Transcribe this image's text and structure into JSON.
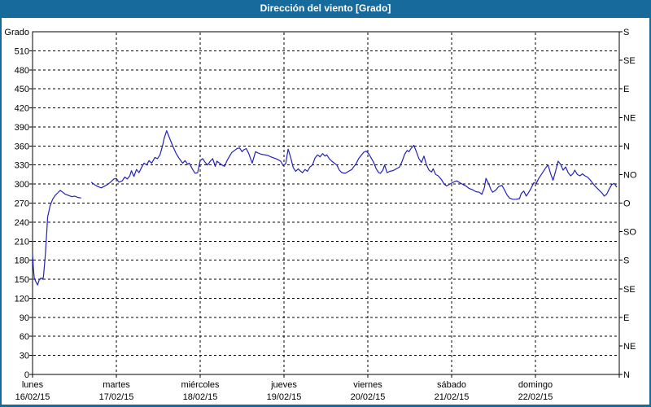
{
  "window": {
    "title": "Dirección del viento [Grado]"
  },
  "colors": {
    "frame": "#176a9c",
    "titlebar_bg": "#176a9c",
    "titlebar_text": "#ffffff",
    "plot_bg": "#ffffff",
    "grid": "#000000",
    "line": "#2222bb",
    "text": "#000000"
  },
  "chart_data": {
    "type": "line",
    "title": "Dirección del viento [Grado]",
    "ylabel": "Grado",
    "ylim": [
      0,
      540
    ],
    "grid": "dashed",
    "legend_position": "none",
    "y_left": {
      "label": "Grado",
      "tick_step": 30,
      "ticks": [
        0,
        30,
        60,
        90,
        120,
        150,
        180,
        210,
        240,
        270,
        300,
        330,
        360,
        390,
        420,
        450,
        480,
        510
      ]
    },
    "y_right": {
      "tick_step": 45,
      "labels_bottom_to_top": [
        "N",
        "NE",
        "E",
        "SE",
        "S",
        "SO",
        "O",
        "NO",
        "N",
        "NE",
        "E",
        "SE",
        "S"
      ]
    },
    "x_days": [
      {
        "name": "lunes",
        "date": "16/02/15"
      },
      {
        "name": "martes",
        "date": "17/02/15"
      },
      {
        "name": "miércoles",
        "date": "18/02/15"
      },
      {
        "name": "jueves",
        "date": "19/02/15"
      },
      {
        "name": "viernes",
        "date": "20/02/15"
      },
      {
        "name": "sábado",
        "date": "21/02/15"
      },
      {
        "name": "domingo",
        "date": "22/02/15"
      }
    ],
    "series": [
      {
        "name": "Dirección del viento",
        "unit": "Grado",
        "x_unit": "days_since_start",
        "segments": [
          [
            [
              0.0,
              190
            ],
            [
              0.01,
              168
            ],
            [
              0.02,
              152
            ],
            [
              0.04,
              146
            ],
            [
              0.06,
              141
            ],
            [
              0.08,
              149
            ],
            [
              0.1,
              152
            ],
            [
              0.12,
              150
            ],
            [
              0.13,
              154
            ],
            [
              0.15,
              185
            ],
            [
              0.17,
              225
            ],
            [
              0.18,
              248
            ],
            [
              0.21,
              266
            ],
            [
              0.24,
              276
            ],
            [
              0.27,
              282
            ],
            [
              0.3,
              286
            ],
            [
              0.33,
              290
            ],
            [
              0.36,
              287
            ],
            [
              0.39,
              284
            ],
            [
              0.43,
              282
            ],
            [
              0.47,
              280
            ],
            [
              0.5,
              281
            ],
            [
              0.54,
              279
            ],
            [
              0.58,
              278
            ]
          ],
          [
            [
              0.7,
              303
            ],
            [
              0.74,
              299
            ],
            [
              0.78,
              296
            ],
            [
              0.82,
              294
            ],
            [
              0.85,
              296
            ],
            [
              0.89,
              299
            ],
            [
              0.93,
              303
            ],
            [
              0.97,
              308
            ],
            [
              1.0,
              309
            ],
            [
              1.03,
              303
            ],
            [
              1.07,
              305
            ],
            [
              1.1,
              311
            ],
            [
              1.13,
              308
            ],
            [
              1.16,
              313
            ],
            [
              1.18,
              321
            ],
            [
              1.21,
              312
            ],
            [
              1.24,
              323
            ],
            [
              1.27,
              318
            ],
            [
              1.3,
              326
            ],
            [
              1.33,
              333
            ],
            [
              1.36,
              330
            ],
            [
              1.39,
              337
            ],
            [
              1.42,
              333
            ],
            [
              1.46,
              342
            ],
            [
              1.49,
              340
            ],
            [
              1.52,
              346
            ],
            [
              1.55,
              360
            ],
            [
              1.57,
              372
            ],
            [
              1.6,
              384
            ],
            [
              1.63,
              374
            ],
            [
              1.67,
              361
            ],
            [
              1.71,
              349
            ],
            [
              1.75,
              340
            ],
            [
              1.79,
              333
            ],
            [
              1.82,
              337
            ],
            [
              1.85,
              331
            ],
            [
              1.87,
              333
            ],
            [
              1.91,
              323
            ],
            [
              1.94,
              317
            ],
            [
              1.97,
              318
            ],
            [
              2.0,
              337
            ],
            [
              2.03,
              340
            ],
            [
              2.06,
              334
            ],
            [
              2.09,
              330
            ],
            [
              2.12,
              336
            ],
            [
              2.15,
              340
            ],
            [
              2.18,
              328
            ],
            [
              2.2,
              336
            ],
            [
              2.23,
              333
            ],
            [
              2.26,
              330
            ],
            [
              2.29,
              328
            ],
            [
              2.32,
              337
            ],
            [
              2.35,
              344
            ],
            [
              2.38,
              350
            ],
            [
              2.41,
              353
            ],
            [
              2.44,
              356
            ],
            [
              2.47,
              357
            ],
            [
              2.5,
              351
            ],
            [
              2.52,
              354
            ],
            [
              2.55,
              356
            ],
            [
              2.58,
              348
            ],
            [
              2.62,
              333
            ],
            [
              2.66,
              351
            ],
            [
              2.69,
              349
            ],
            [
              2.73,
              347
            ],
            [
              2.77,
              346
            ],
            [
              2.81,
              345
            ],
            [
              2.84,
              343
            ],
            [
              2.88,
              341
            ],
            [
              2.92,
              339
            ],
            [
              2.96,
              336
            ],
            [
              2.99,
              329
            ],
            [
              3.02,
              332
            ],
            [
              3.05,
              355
            ],
            [
              3.08,
              342
            ],
            [
              3.11,
              326
            ],
            [
              3.14,
              320
            ],
            [
              3.17,
              324
            ],
            [
              3.19,
              321
            ],
            [
              3.22,
              318
            ],
            [
              3.25,
              323
            ],
            [
              3.28,
              320
            ],
            [
              3.31,
              327
            ],
            [
              3.34,
              330
            ],
            [
              3.37,
              341
            ],
            [
              3.4,
              346
            ],
            [
              3.43,
              343
            ],
            [
              3.46,
              348
            ],
            [
              3.49,
              344
            ],
            [
              3.51,
              346
            ],
            [
              3.54,
              340
            ],
            [
              3.57,
              336
            ],
            [
              3.6,
              333
            ],
            [
              3.63,
              330
            ],
            [
              3.66,
              322
            ],
            [
              3.69,
              318
            ],
            [
              3.73,
              317
            ],
            [
              3.77,
              320
            ],
            [
              3.81,
              323
            ],
            [
              3.83,
              327
            ],
            [
              3.86,
              332
            ],
            [
              3.89,
              340
            ],
            [
              3.92,
              345
            ],
            [
              3.95,
              350
            ],
            [
              3.98,
              352
            ],
            [
              4.01,
              348
            ],
            [
              4.04,
              341
            ],
            [
              4.07,
              334
            ],
            [
              4.1,
              324
            ],
            [
              4.13,
              318
            ],
            [
              4.15,
              317
            ],
            [
              4.18,
              322
            ],
            [
              4.2,
              330
            ],
            [
              4.23,
              318
            ],
            [
              4.26,
              320
            ],
            [
              4.3,
              321
            ],
            [
              4.34,
              324
            ],
            [
              4.38,
              327
            ],
            [
              4.41,
              336
            ],
            [
              4.44,
              347
            ],
            [
              4.47,
              353
            ],
            [
              4.49,
              351
            ],
            [
              4.52,
              357
            ],
            [
              4.55,
              361
            ],
            [
              4.58,
              351
            ],
            [
              4.61,
              340
            ],
            [
              4.64,
              334
            ],
            [
              4.67,
              344
            ],
            [
              4.7,
              330
            ],
            [
              4.73,
              322
            ],
            [
              4.76,
              319
            ],
            [
              4.78,
              324
            ],
            [
              4.81,
              315
            ],
            [
              4.84,
              313
            ],
            [
              4.88,
              307
            ],
            [
              4.91,
              300
            ],
            [
              4.94,
              297
            ],
            [
              4.98,
              300
            ],
            [
              5.02,
              303
            ],
            [
              5.06,
              305
            ],
            [
              5.1,
              302
            ],
            [
              5.14,
              299
            ],
            [
              5.17,
              297
            ],
            [
              5.21,
              293
            ],
            [
              5.25,
              291
            ],
            [
              5.29,
              288
            ],
            [
              5.33,
              287
            ],
            [
              5.36,
              284
            ],
            [
              5.39,
              294
            ],
            [
              5.41,
              309
            ],
            [
              5.44,
              301
            ],
            [
              5.47,
              291
            ],
            [
              5.49,
              287
            ],
            [
              5.53,
              291
            ],
            [
              5.56,
              296
            ],
            [
              5.6,
              298
            ],
            [
              5.63,
              291
            ],
            [
              5.66,
              283
            ],
            [
              5.69,
              278
            ],
            [
              5.73,
              276
            ],
            [
              5.77,
              276
            ],
            [
              5.81,
              277
            ],
            [
              5.83,
              285
            ],
            [
              5.86,
              289
            ],
            [
              5.89,
              281
            ],
            [
              5.92,
              287
            ],
            [
              5.95,
              294
            ],
            [
              5.98,
              302
            ],
            [
              6.01,
              301
            ],
            [
              6.04,
              309
            ],
            [
              6.07,
              315
            ],
            [
              6.1,
              321
            ],
            [
              6.13,
              327
            ],
            [
              6.15,
              330
            ],
            [
              6.18,
              317
            ],
            [
              6.21,
              306
            ],
            [
              6.24,
              320
            ],
            [
              6.27,
              336
            ],
            [
              6.3,
              331
            ],
            [
              6.33,
              322
            ],
            [
              6.36,
              327
            ],
            [
              6.39,
              318
            ],
            [
              6.42,
              313
            ],
            [
              6.45,
              317
            ],
            [
              6.47,
              322
            ],
            [
              6.5,
              315
            ],
            [
              6.53,
              313
            ],
            [
              6.56,
              316
            ],
            [
              6.59,
              313
            ],
            [
              6.62,
              311
            ],
            [
              6.65,
              307
            ],
            [
              6.68,
              302
            ],
            [
              6.71,
              297
            ],
            [
              6.74,
              293
            ],
            [
              6.77,
              289
            ],
            [
              6.8,
              285
            ],
            [
              6.82,
              281
            ],
            [
              6.85,
              284
            ],
            [
              6.88,
              292
            ],
            [
              6.91,
              299
            ],
            [
              6.94,
              301
            ],
            [
              6.97,
              295
            ]
          ]
        ]
      }
    ]
  }
}
